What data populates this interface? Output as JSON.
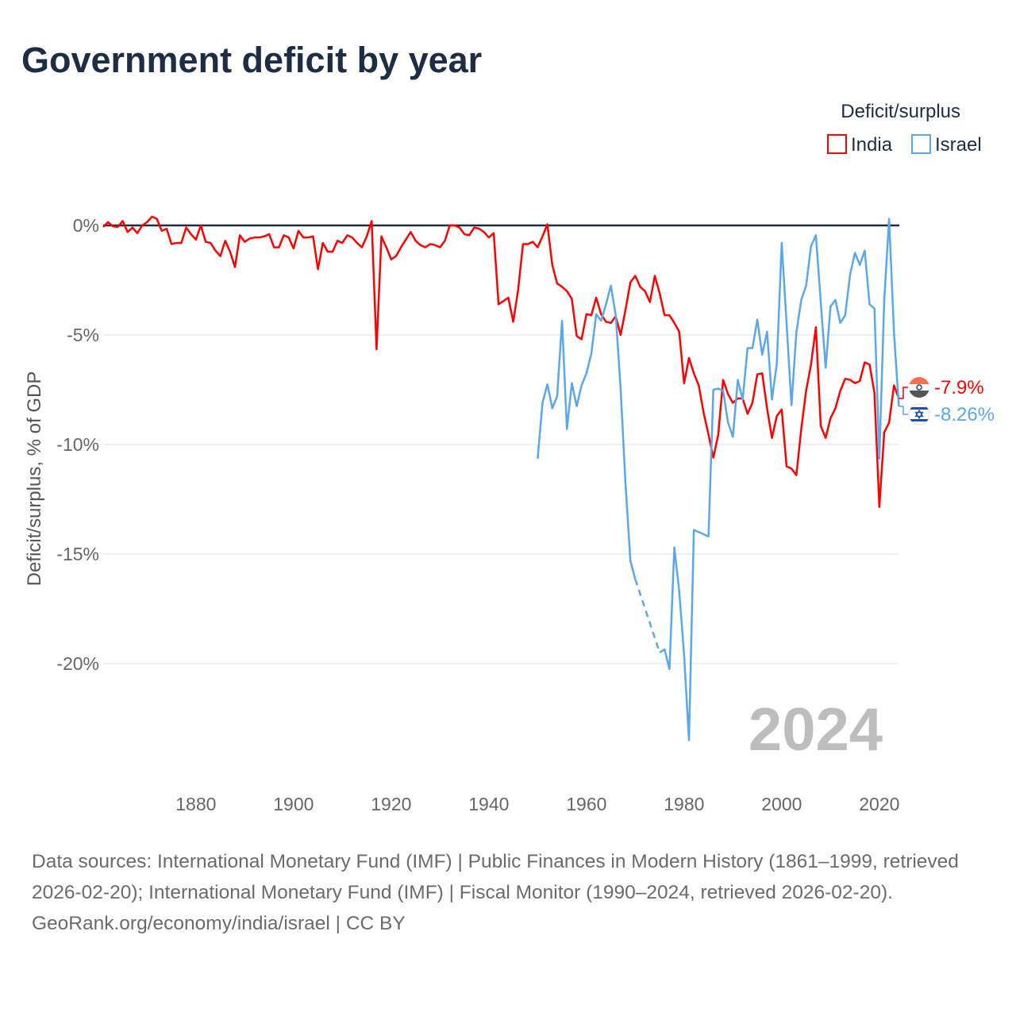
{
  "title": "Government deficit by year",
  "legend": {
    "title": "Deficit/surplus",
    "items": [
      {
        "label": "India",
        "color": "#ff0000"
      },
      {
        "label": "Israel",
        "color": "#5ba7ec"
      }
    ]
  },
  "year_watermark": "2024",
  "end_labels": [
    {
      "country": "India",
      "label": "-7.9%",
      "icon": "india-flag-icon"
    },
    {
      "country": "Israel",
      "label": "-8.26%",
      "icon": "israel-flag-icon"
    }
  ],
  "footer": {
    "sources": "Data sources: International Monetary Fund (IMF) | Public Finances in Modern History (1861–1999, retrieved 2026-02-20); International Monetary Fund (IMF) | Fiscal Monitor (1990–2024, retrieved 2026-02-20).",
    "credit": "GeoRank.org/economy/india/israel | CC BY"
  },
  "chart_data": {
    "type": "line",
    "title": "Government deficit by year",
    "xlabel": "",
    "ylabel": "Deficit/surplus, % of GDP",
    "xlim": [
      1861,
      2024
    ],
    "ylim": [
      -25,
      2
    ],
    "grid": true,
    "legend_position": "top-right",
    "x_ticks": [
      {
        "value": 1880,
        "label": "1880"
      },
      {
        "value": 1900,
        "label": "1900"
      },
      {
        "value": 1920,
        "label": "1920"
      },
      {
        "value": 1940,
        "label": "1940"
      },
      {
        "value": 1960,
        "label": "1960"
      },
      {
        "value": 1980,
        "label": "1980"
      },
      {
        "value": 2000,
        "label": "2000"
      },
      {
        "value": 2020,
        "label": "2020"
      }
    ],
    "y_ticks": [
      {
        "value": 0,
        "label": "0%"
      },
      {
        "value": -5,
        "label": "-5%"
      },
      {
        "value": -10,
        "label": "-10%"
      },
      {
        "value": -15,
        "label": "-15%"
      },
      {
        "value": -20,
        "label": "-20%"
      }
    ],
    "series": [
      {
        "name": "India",
        "color": "#ff0000",
        "start_year": 1861,
        "values": [
          -0.07,
          0.15,
          -0.04,
          -0.07,
          0.2,
          -0.3,
          -0.1,
          -0.35,
          0,
          0.15,
          0.4,
          0.3,
          -0.25,
          -0.15,
          -0.85,
          -0.8,
          -0.8,
          -0.1,
          -0.4,
          -0.65,
          0,
          -0.75,
          -0.8,
          -1.15,
          -1.4,
          -0.7,
          -1.2,
          -1.9,
          -0.45,
          -0.75,
          -0.6,
          -0.55,
          -0.55,
          -0.5,
          -0.4,
          -1.0,
          -1.0,
          -0.45,
          -0.55,
          -1.05,
          -0.25,
          -0.55,
          -0.55,
          -0.5,
          -2.0,
          -0.8,
          -1.2,
          -1.2,
          -0.7,
          -0.8,
          -0.45,
          -0.55,
          -0.8,
          -1.0,
          -0.5,
          0.2,
          -5.65,
          -0.5,
          -1.0,
          -1.55,
          -1.4,
          -1.0,
          -0.65,
          -0.3,
          -0.7,
          -0.9,
          -1.0,
          -0.85,
          -0.9,
          -1.0,
          -0.7,
          0,
          0,
          -0.1,
          -0.4,
          -0.45,
          -0.1,
          -0.15,
          -0.3,
          -0.55,
          -0.35,
          -3.6,
          -3.45,
          -3.3,
          -4.4,
          -2.95,
          -0.85,
          -0.85,
          -0.75,
          -1.0,
          -0.5,
          0.05,
          -1.8,
          -2.65,
          -2.8,
          -3.0,
          -3.35,
          -5.05,
          -5.2,
          -4.05,
          -4.1,
          -3.3,
          -4.05,
          -4.4,
          -4.45,
          -4.15,
          -5.0,
          -3.85,
          -2.6,
          -2.3,
          -2.8,
          -3.0,
          -3.5,
          -2.3,
          -3.1,
          -4.1,
          -4.1,
          -4.45,
          -4.85,
          -7.2,
          -6.05,
          -6.75,
          -7.3,
          -8.55,
          -9.55,
          -10.6,
          -9.55,
          -7.05,
          -7.7,
          -8.1,
          -7.9,
          -7.9,
          -8.6,
          -8.1,
          -6.8,
          -6.75,
          -8.35,
          -9.7,
          -8.7,
          -8.4,
          -11.0,
          -11.1,
          -11.4,
          -9.3,
          -7.55,
          -6.35,
          -4.65,
          -9.15,
          -9.7,
          -8.8,
          -8.35,
          -7.55,
          -7.0,
          -7.05,
          -7.2,
          -7.1,
          -6.25,
          -6.35,
          -7.65,
          -12.85,
          -9.45,
          -9.0,
          -7.3,
          -7.9
        ]
      },
      {
        "name": "Israel",
        "color": "#5ba7ec",
        "start_year": 1950,
        "values": [
          -10.65,
          -8.1,
          -7.25,
          -8.35,
          -7.8,
          -4.35,
          -9.3,
          -7.2,
          -8.25,
          -7.3,
          -6.75,
          -5.85,
          -4.05,
          -4.35,
          -3.6,
          -2.75,
          -4.1,
          -7.45,
          -11.8,
          -15.3,
          -16.15,
          null,
          null,
          null,
          null,
          -19.5,
          -19.35,
          -20.25,
          -14.7,
          -16.7,
          -19.6,
          -23.5,
          -13.9,
          -14.0,
          -14.1,
          -14.2,
          -7.5,
          -7.45,
          -7.55,
          -9.0,
          -9.65,
          -7.05,
          -7.95,
          -5.6,
          -5.6,
          -4.3,
          -5.9,
          -4.85,
          -7.95,
          -6.3,
          -0.8,
          -4.5,
          -8.2,
          -4.9,
          -3.4,
          -2.75,
          -0.95,
          -0.45,
          -3.5,
          -6.5,
          -3.7,
          -3.4,
          -4.45,
          -4.1,
          -2.25,
          -1.25,
          -1.8,
          -1.15,
          -3.6,
          -3.8,
          -10.65,
          -3.4,
          0.3,
          -4.9,
          -8.26
        ]
      }
    ]
  }
}
